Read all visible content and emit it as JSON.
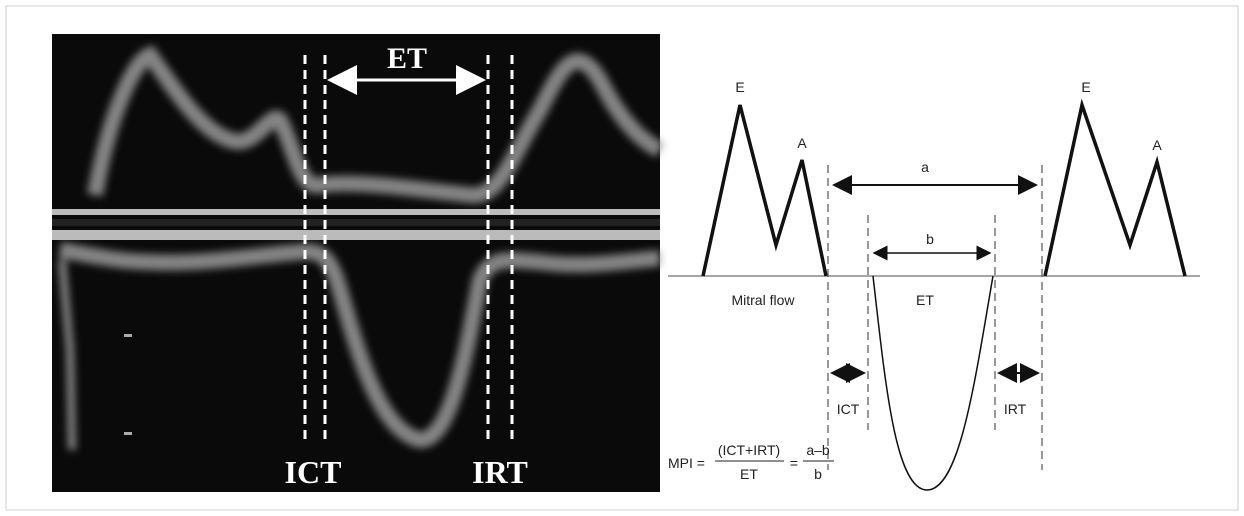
{
  "doppler": {
    "et": "ET",
    "ict": "ICT",
    "irt": "IRT"
  },
  "diagram": {
    "e1": "E",
    "a1": "A",
    "e2": "E",
    "a2": "A",
    "a": "a",
    "b": "b",
    "mitral": "Mitral flow",
    "et": "ET",
    "ict": "ICT",
    "irt": "IRT"
  },
  "formula": {
    "lhs": "MPI =",
    "num1": "(ICT+IRT)",
    "den1": "ET",
    "eq": "=",
    "num2": "a–b",
    "den2": "b"
  }
}
